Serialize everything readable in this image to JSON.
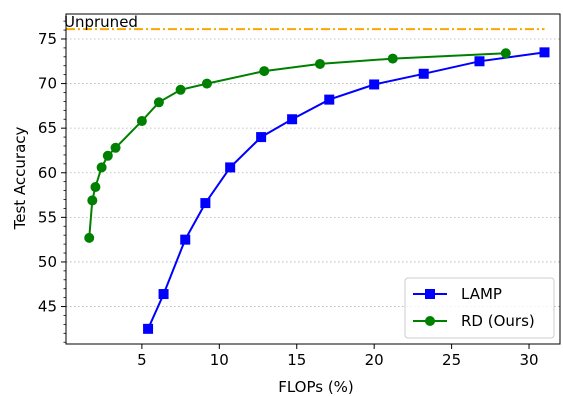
{
  "chart_data": {
    "type": "line",
    "xlabel": "FLOPs (%)",
    "ylabel": "Test Accuracy",
    "xlim": [
      0.1,
      32.0
    ],
    "ylim": [
      40.8,
      77.8
    ],
    "xticks": [
      5,
      10,
      15,
      20,
      25,
      30
    ],
    "yticks": [
      45,
      50,
      55,
      60,
      65,
      70,
      75
    ],
    "grid": "horizontal-dotted",
    "legend_position": "bottom-right",
    "reference_line": {
      "label": "Unpruned",
      "value": 76.1,
      "x_range": [
        0.1,
        31.0
      ],
      "color": "#FFA500"
    },
    "series": [
      {
        "name": "LAMP",
        "color": "#0000FF",
        "marker": "square",
        "x": [
          5.4,
          6.4,
          7.8,
          9.1,
          10.7,
          12.7,
          14.7,
          17.1,
          20.0,
          23.2,
          26.8,
          31.0
        ],
        "y": [
          42.5,
          46.4,
          52.5,
          56.6,
          60.6,
          64.0,
          66.0,
          68.2,
          69.9,
          71.1,
          72.5,
          73.5
        ]
      },
      {
        "name": "RD (Ours)",
        "color": "#008000",
        "marker": "circle",
        "x": [
          1.6,
          1.8,
          2.0,
          2.4,
          2.8,
          3.3,
          5.0,
          6.1,
          7.5,
          9.2,
          12.9,
          16.5,
          21.2,
          28.5
        ],
        "y": [
          52.7,
          56.9,
          58.4,
          60.6,
          61.9,
          62.8,
          65.8,
          67.9,
          69.3,
          70.0,
          71.4,
          72.2,
          72.8,
          73.4
        ]
      }
    ]
  }
}
